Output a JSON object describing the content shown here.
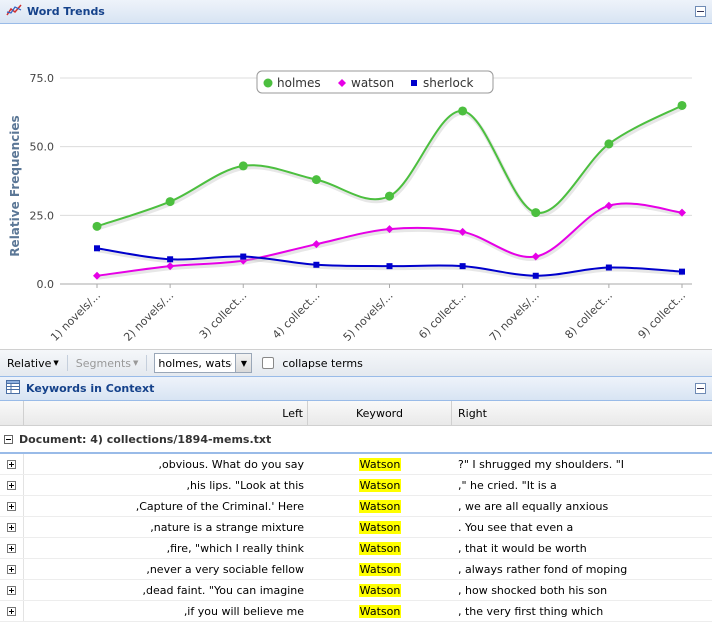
{
  "trends_panel": {
    "title": "Word Trends"
  },
  "chart_data": {
    "type": "line",
    "ylabel": "Relative Frequencies",
    "ylim": [
      0,
      75
    ],
    "yticks": [
      "0.0",
      "25.0",
      "50.0",
      "75.0"
    ],
    "categories": [
      "1) novels/...",
      "2) novels/...",
      "3) collect...",
      "4) collect...",
      "5) novels/...",
      "6) collect...",
      "7) novels/...",
      "8) collect...",
      "9) collect..."
    ],
    "series": [
      {
        "name": "holmes",
        "color": "#4cbf3f",
        "marker": "circle",
        "values": [
          21,
          30,
          43,
          38,
          32,
          63,
          26,
          51,
          65
        ]
      },
      {
        "name": "watson",
        "color": "#e600e6",
        "marker": "diamond",
        "values": [
          3,
          6.5,
          8.5,
          14.5,
          20,
          19,
          10,
          28.5,
          26
        ]
      },
      {
        "name": "sherlock",
        "color": "#0000cc",
        "marker": "square",
        "values": [
          13,
          9,
          10,
          7,
          6.5,
          6.5,
          3,
          6,
          4.5
        ]
      }
    ],
    "legend": "top",
    "grid": true
  },
  "toolbar": {
    "relative_label": "Relative",
    "segments_label": "Segments",
    "terms_value": "holmes, watso",
    "collapse_label": "collapse terms"
  },
  "kwic": {
    "title": "Keywords in Context",
    "columns": {
      "left": "Left",
      "keyword": "Keyword",
      "right": "Right"
    },
    "group_label": "Document: 4) collections/1894-mems.txt",
    "rows": [
      {
        "left": ",obvious. What do you say",
        "keyword": "Watson",
        "right": "?\" I shrugged my shoulders. \"I"
      },
      {
        "left": ",his lips. \"Look at this",
        "keyword": "Watson",
        "right": ",\" he cried. \"It is a"
      },
      {
        "left": ",Capture of the Criminal.' Here",
        "keyword": "Watson",
        "right": ", we are all equally anxious"
      },
      {
        "left": ",nature is a strange mixture",
        "keyword": "Watson",
        "right": ". You see that even a"
      },
      {
        "left": ",fire, \"which I really think",
        "keyword": "Watson",
        "right": ", that it would be worth"
      },
      {
        "left": ",never a very sociable fellow",
        "keyword": "Watson",
        "right": ", always rather fond of moping"
      },
      {
        "left": ",dead faint. \"You can imagine",
        "keyword": "Watson",
        "right": ", how shocked both his son"
      },
      {
        "left": ",if you will believe me",
        "keyword": "Watson",
        "right": ", the very first thing which"
      }
    ]
  }
}
